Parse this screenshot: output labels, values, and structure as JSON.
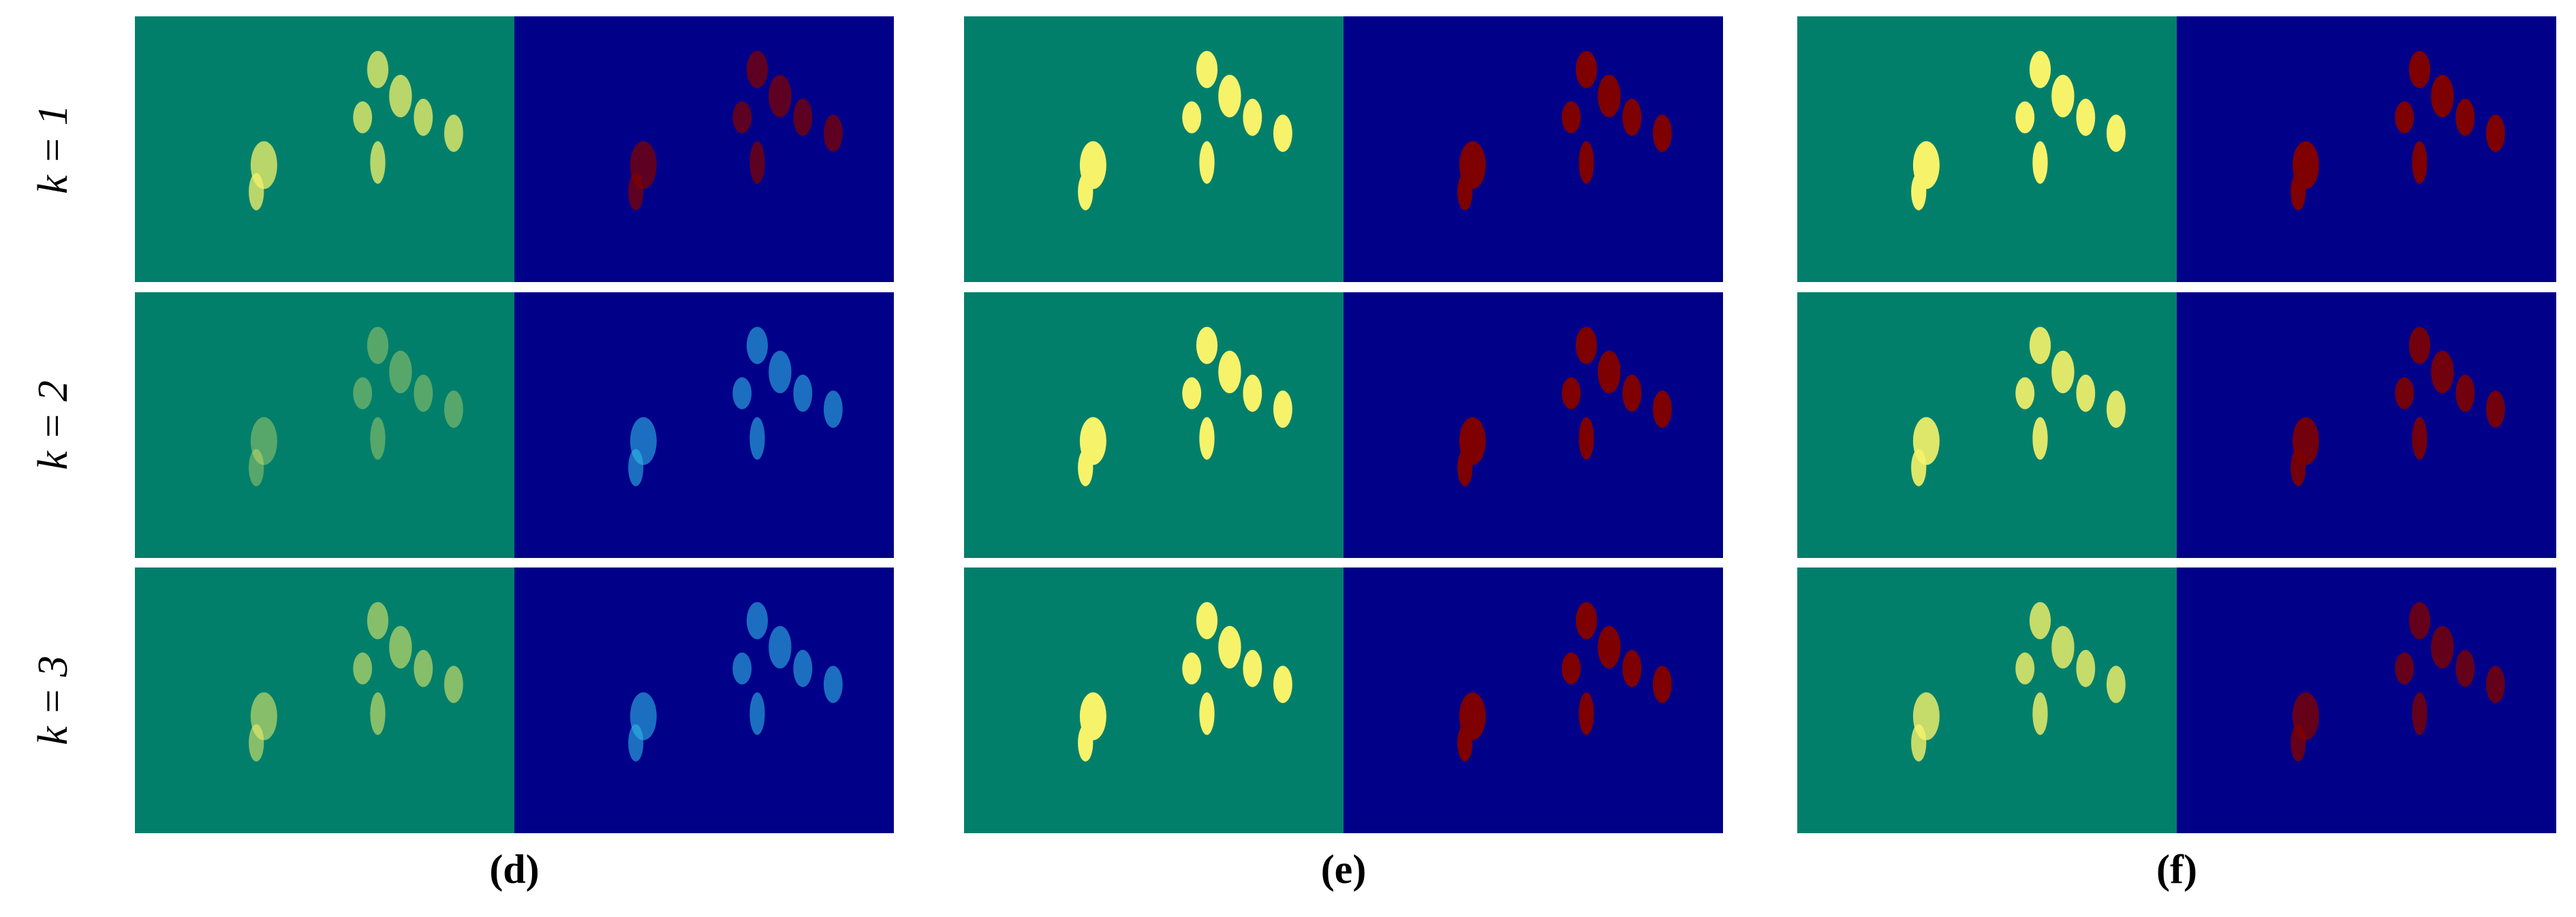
{
  "row_labels": [
    "k = 1",
    "k = 2",
    "k = 3"
  ],
  "panels": [
    {
      "label": "(d)"
    },
    {
      "label": "(e)"
    },
    {
      "label": "(f)"
    }
  ]
}
